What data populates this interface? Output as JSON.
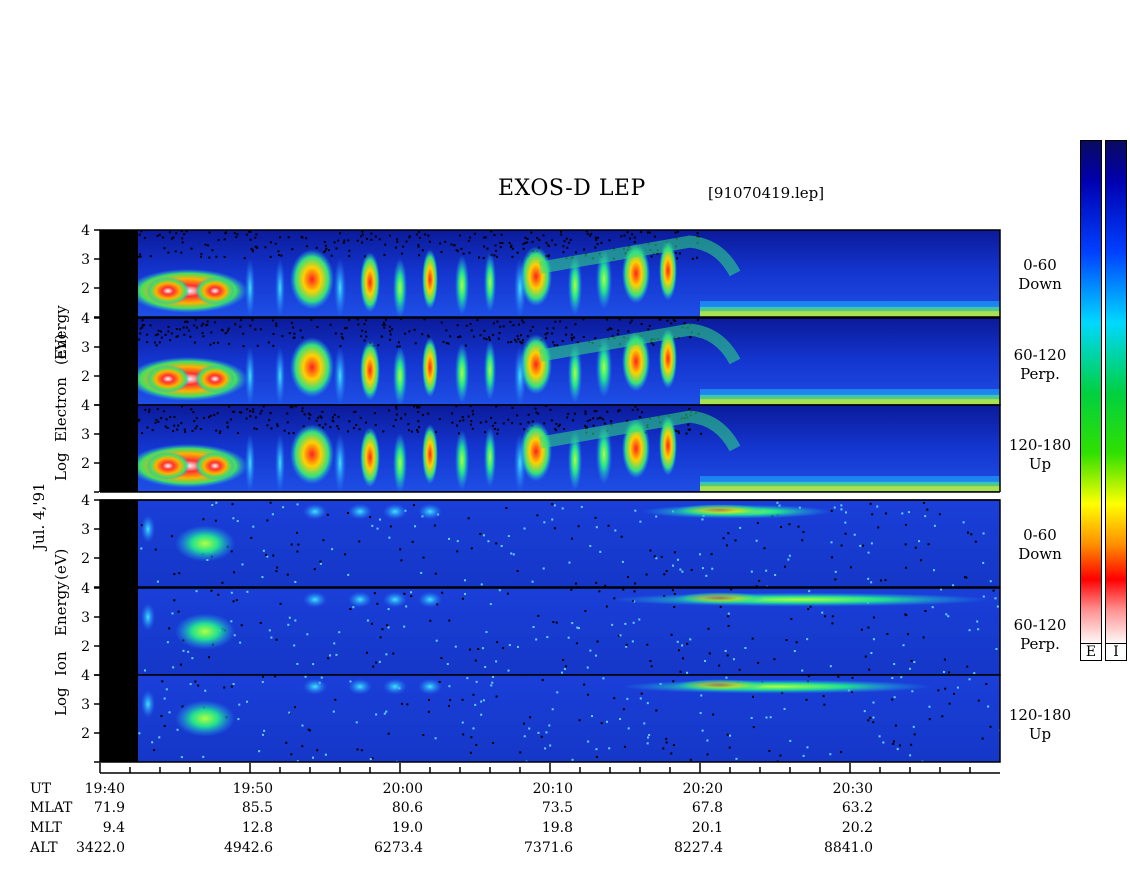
{
  "header": {
    "title": "EXOS-D LEP",
    "file": "[91070419.lep]"
  },
  "date_label": "Jul. 4,'91",
  "electron_label": {
    "line1": "Log",
    "line2": "Electron",
    "line3": "Energy",
    "line4": "(eV)"
  },
  "ion_label": {
    "line1": "Log",
    "line2": "Ion",
    "line3": "Energy",
    "line4": "(eV)"
  },
  "panels": [
    {
      "pitch": "0-60",
      "dir": "Down"
    },
    {
      "pitch": "60-120",
      "dir": "Perp."
    },
    {
      "pitch": "120-180",
      "dir": "Up"
    },
    {
      "pitch": "0-60",
      "dir": "Down"
    },
    {
      "pitch": "60-120",
      "dir": "Perp."
    },
    {
      "pitch": "120-180",
      "dir": "Up"
    }
  ],
  "colorbars": {
    "left_label": "E",
    "right_label": "I"
  },
  "table": {
    "rows": [
      {
        "label": "UT",
        "values": [
          "19:40",
          "19:50",
          "20:00",
          "20:10",
          "20:20",
          "20:30"
        ]
      },
      {
        "label": "MLAT",
        "values": [
          "71.9",
          "85.5",
          "80.6",
          "73.5",
          "67.8",
          "63.2"
        ]
      },
      {
        "label": "MLT",
        "values": [
          "9.4",
          "12.8",
          "19.0",
          "19.8",
          "20.1",
          "20.2"
        ]
      },
      {
        "label": "ALT",
        "values": [
          "3422.0",
          "4942.6",
          "6273.4",
          "7371.6",
          "8227.4",
          "8841.0"
        ]
      }
    ]
  },
  "chart_data": {
    "type": "heatmap",
    "title": "EXOS-D LEP",
    "x_ticks": [
      "19:40",
      "19:50",
      "20:00",
      "20:10",
      "20:20",
      "20:30"
    ],
    "y_ticks": [
      "2",
      "3",
      "4"
    ],
    "ylim": [
      1,
      4
    ],
    "panels": [
      {
        "species": "Electron",
        "pitch": "0-60",
        "dir": "Down"
      },
      {
        "species": "Electron",
        "pitch": "60-120",
        "dir": "Perp."
      },
      {
        "species": "Electron",
        "pitch": "120-180",
        "dir": "Up"
      },
      {
        "species": "Ion",
        "pitch": "0-60",
        "dir": "Down"
      },
      {
        "species": "Ion",
        "pitch": "60-120",
        "dir": "Perp."
      },
      {
        "species": "Ion",
        "pitch": "120-180",
        "dir": "Up"
      }
    ],
    "colorscale": [
      "#ffffff",
      "#ff0000",
      "#ff8c00",
      "#ffff00",
      "#00cc00",
      "#00ffff",
      "#0000ff",
      "#000080"
    ]
  }
}
